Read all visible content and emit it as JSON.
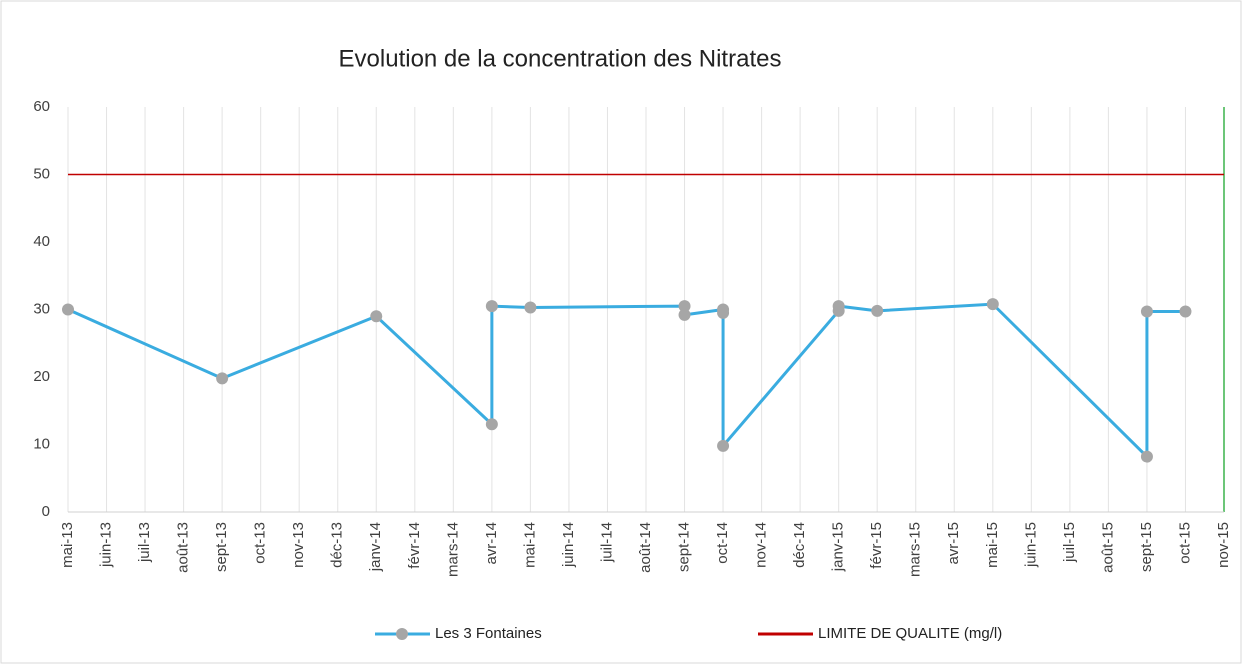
{
  "chart_data": {
    "type": "line",
    "title": "Evolution de la concentration des Nitrates",
    "categories": [
      "mai-13",
      "juin-13",
      "juil-13",
      "août-13",
      "sept-13",
      "oct-13",
      "nov-13",
      "déc-13",
      "janv-14",
      "févr-14",
      "mars-14",
      "avr-14",
      "mai-14",
      "juin-14",
      "juil-14",
      "août-14",
      "sept-14",
      "oct-14",
      "nov-14",
      "déc-14",
      "janv-15",
      "févr-15",
      "mars-15",
      "avr-15",
      "mai-15",
      "juin-15",
      "juil-15",
      "août-15",
      "sept-15",
      "oct-15",
      "nov-15"
    ],
    "xlim": [
      "2013-05",
      "2015-11"
    ],
    "ylim": [
      0,
      60
    ],
    "yticks": [
      0,
      10,
      20,
      30,
      40,
      50,
      60
    ],
    "grid": true,
    "series": [
      {
        "name": "Les 3 Fontaines",
        "color": "#3aace0",
        "marker_color": "#a6a6a6",
        "x": [
          "2013-05",
          "2013-09",
          "2014-01",
          "2014-04",
          "2014-04",
          "2014-05",
          "2014-09",
          "2014-09",
          "2014-10",
          "2014-10",
          "2014-10",
          "2015-01",
          "2015-01",
          "2015-02",
          "2015-05",
          "2015-09",
          "2015-09",
          "2015-10"
        ],
        "values": [
          30,
          19.8,
          29,
          13,
          30.5,
          30.3,
          30.5,
          29.2,
          30,
          29.5,
          9.8,
          29.8,
          30.5,
          29.8,
          30.8,
          8.2,
          29.7,
          29.7
        ]
      },
      {
        "name": "LIMITE DE QUALITE (mg/l)",
        "color": "#c00000",
        "x": [
          "2013-05",
          "2015-11"
        ],
        "values": [
          50,
          50
        ]
      }
    ]
  }
}
